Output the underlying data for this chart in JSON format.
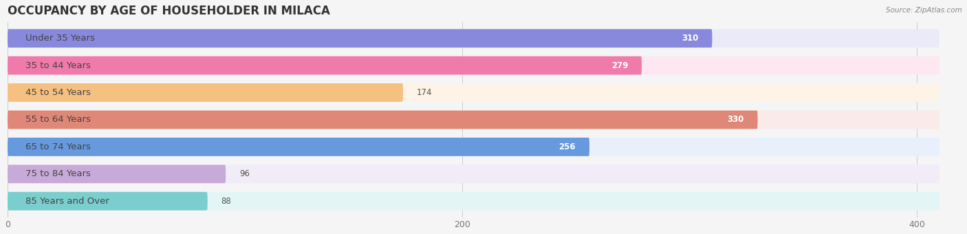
{
  "title": "OCCUPANCY BY AGE OF HOUSEHOLDER IN MILACA",
  "source": "Source: ZipAtlas.com",
  "categories": [
    "Under 35 Years",
    "35 to 44 Years",
    "45 to 54 Years",
    "55 to 64 Years",
    "65 to 74 Years",
    "75 to 84 Years",
    "85 Years and Over"
  ],
  "values": [
    310,
    279,
    174,
    330,
    256,
    96,
    88
  ],
  "bar_colors": [
    "#8888dd",
    "#f07aaa",
    "#f5c080",
    "#e08878",
    "#6699dd",
    "#c8aad8",
    "#7acece"
  ],
  "bar_bg_colors": [
    "#eaeaf8",
    "#fde8f2",
    "#fdf3e6",
    "#faeae8",
    "#e8f0fb",
    "#f2ecf8",
    "#e4f5f5"
  ],
  "xlim": [
    0,
    420
  ],
  "xticks": [
    0,
    200,
    400
  ],
  "bg_color": "#f5f5f5",
  "title_fontsize": 12,
  "label_fontsize": 9.5,
  "value_fontsize": 8.5
}
